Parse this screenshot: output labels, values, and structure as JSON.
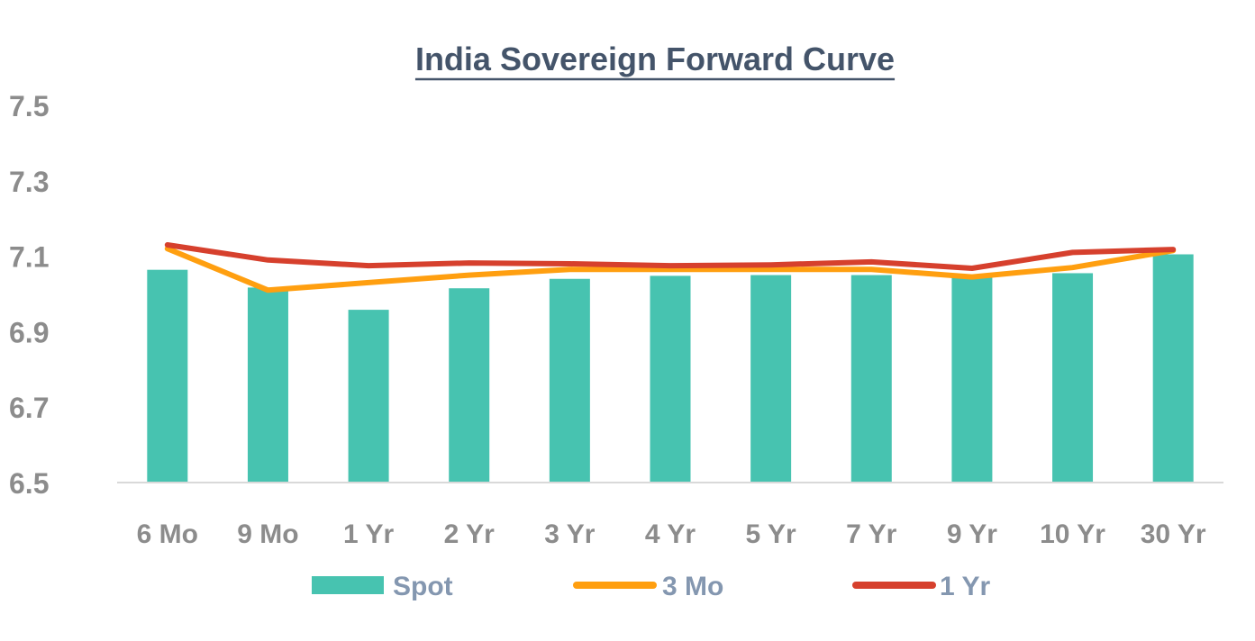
{
  "chart_data": {
    "type": "bar",
    "title": "India Sovereign Forward Curve",
    "xlabel": "",
    "ylabel": "",
    "ylim": [
      6.5,
      7.5
    ],
    "yticks": [
      "7.5",
      "7.3",
      "7.1",
      "6.9",
      "6.7",
      "6.5"
    ],
    "ytick_values": [
      7.5,
      7.3,
      7.1,
      6.9,
      6.7,
      6.5
    ],
    "categories": [
      "6 Mo",
      "9 Mo",
      "1 Yr",
      "2 Yr",
      "3 Yr",
      "4 Yr",
      "5 Yr",
      "7 Yr",
      "9 Yr",
      "10 Yr",
      "30 Yr"
    ],
    "series": [
      {
        "name": "Spot",
        "type": "bar",
        "color": "#47C3B0",
        "values": [
          7.064,
          7.017,
          6.958,
          7.015,
          7.04,
          7.048,
          7.05,
          7.05,
          7.05,
          7.055,
          7.105
        ]
      },
      {
        "name": "3 Mo",
        "type": "line",
        "color": "#FF9F10",
        "values": [
          7.12,
          7.01,
          7.03,
          7.05,
          7.065,
          7.065,
          7.065,
          7.065,
          7.045,
          7.07,
          7.115
        ]
      },
      {
        "name": "1 Yr",
        "type": "line",
        "color": "#D6402D",
        "values": [
          7.13,
          7.09,
          7.075,
          7.082,
          7.08,
          7.075,
          7.077,
          7.085,
          7.068,
          7.11,
          7.118
        ]
      }
    ],
    "grid": false,
    "legend_position": "bottom"
  }
}
